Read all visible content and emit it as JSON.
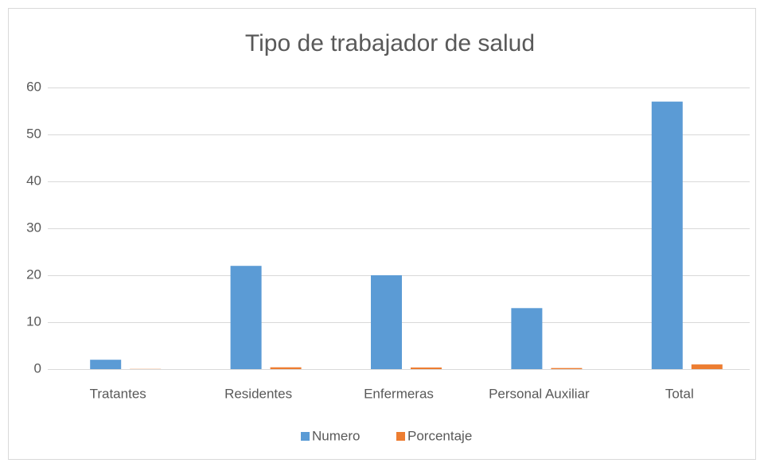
{
  "chart_data": {
    "type": "bar",
    "title": "Tipo de trabajador de salud",
    "categories": [
      "Tratantes",
      "Residentes",
      "Enfermeras",
      "Personal Auxiliar",
      "Total"
    ],
    "series": [
      {
        "name": "Numero",
        "color": "#5b9bd5",
        "values": [
          2,
          22,
          20,
          13,
          57
        ]
      },
      {
        "name": "Porcentaje",
        "color": "#ed7d31",
        "values": [
          0.04,
          0.39,
          0.35,
          0.23,
          1
        ]
      }
    ],
    "ylim": [
      0,
      60
    ],
    "yticks": [
      0,
      10,
      20,
      30,
      40,
      50,
      60
    ],
    "grid": true,
    "legend": "bottom"
  }
}
